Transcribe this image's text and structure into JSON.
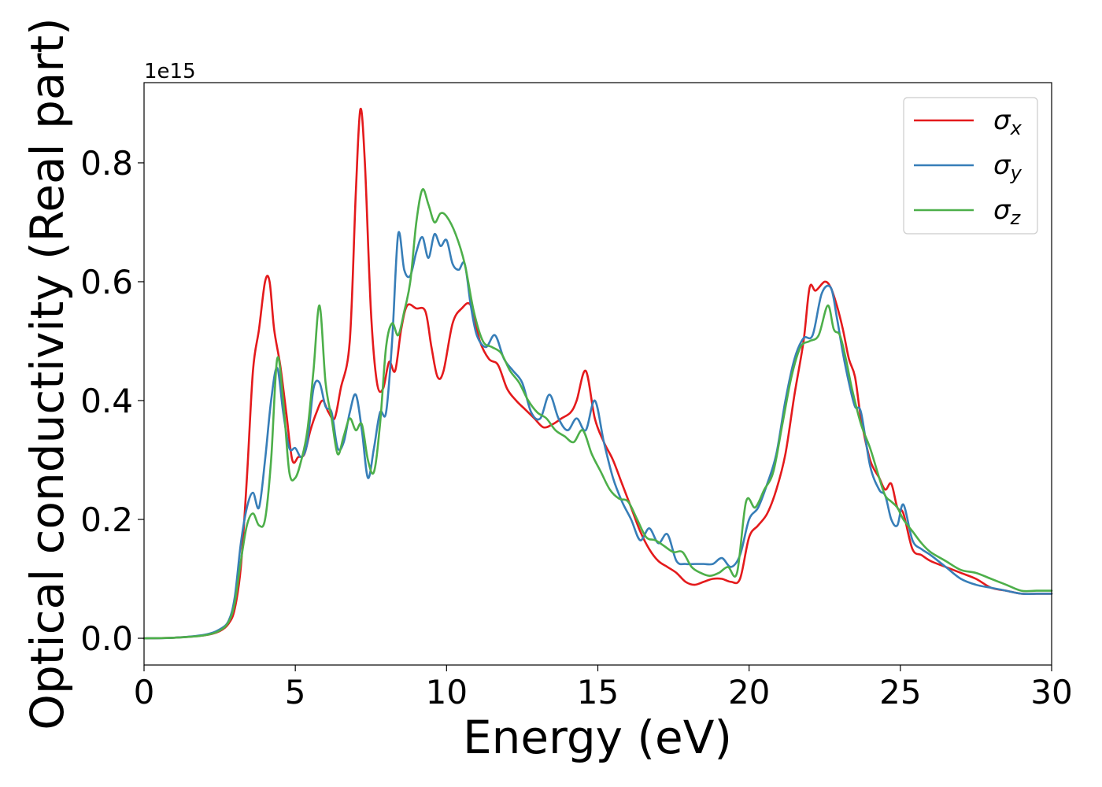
{
  "chart_data": {
    "type": "line",
    "title": "",
    "xlabel": "Energy (eV)",
    "ylabel": "Optical conductivity (Real part)",
    "y_offset_label": "1e15",
    "xlim": [
      0,
      30
    ],
    "ylim": [
      -0.045,
      0.935
    ],
    "x_ticks": [
      0,
      5,
      10,
      15,
      20,
      25,
      30
    ],
    "x_tick_labels": [
      "0",
      "5",
      "10",
      "15",
      "20",
      "25",
      "30"
    ],
    "y_ticks": [
      0.0,
      0.2,
      0.4,
      0.6,
      0.8
    ],
    "y_tick_labels": [
      "0.0",
      "0.2",
      "0.4",
      "0.6",
      "0.8"
    ],
    "grid": false,
    "legend": "top-right",
    "series": [
      {
        "name": "σx",
        "symbol": "σ",
        "sub": "x",
        "color": "#e41a1c",
        "x": [
          0,
          1,
          2,
          2.5,
          2.8,
          3.0,
          3.2,
          3.4,
          3.6,
          3.8,
          4.0,
          4.15,
          4.3,
          4.5,
          4.7,
          4.9,
          5.1,
          5.3,
          5.5,
          5.7,
          5.9,
          6.1,
          6.3,
          6.5,
          6.8,
          7.0,
          7.15,
          7.3,
          7.5,
          7.7,
          7.9,
          8.1,
          8.3,
          8.5,
          8.7,
          9.0,
          9.3,
          9.5,
          9.7,
          9.9,
          10.2,
          10.5,
          10.8,
          11.1,
          11.4,
          11.7,
          12.0,
          12.3,
          12.6,
          12.9,
          13.2,
          13.5,
          13.8,
          14.1,
          14.3,
          14.6,
          14.9,
          15.2,
          15.5,
          15.8,
          16.1,
          16.4,
          16.7,
          17.0,
          17.3,
          17.6,
          17.9,
          18.2,
          18.5,
          18.8,
          19.1,
          19.4,
          19.7,
          20.0,
          20.3,
          20.6,
          20.9,
          21.2,
          21.5,
          21.8,
          22.0,
          22.2,
          22.5,
          22.7,
          22.9,
          23.1,
          23.3,
          23.5,
          23.7,
          24.0,
          24.3,
          24.5,
          24.7,
          24.9,
          25.1,
          25.4,
          25.7,
          26.0,
          26.5,
          27.0,
          27.5,
          28.0,
          28.5,
          29.0,
          29.5,
          30.0
        ],
        "y": [
          0,
          0.001,
          0.005,
          0.012,
          0.025,
          0.05,
          0.12,
          0.27,
          0.45,
          0.52,
          0.6,
          0.6,
          0.52,
          0.46,
          0.38,
          0.3,
          0.305,
          0.31,
          0.35,
          0.38,
          0.4,
          0.38,
          0.37,
          0.42,
          0.5,
          0.75,
          0.89,
          0.8,
          0.55,
          0.43,
          0.42,
          0.465,
          0.45,
          0.52,
          0.56,
          0.555,
          0.55,
          0.49,
          0.44,
          0.45,
          0.53,
          0.555,
          0.56,
          0.5,
          0.47,
          0.46,
          0.42,
          0.4,
          0.385,
          0.37,
          0.355,
          0.36,
          0.37,
          0.38,
          0.4,
          0.45,
          0.37,
          0.33,
          0.3,
          0.26,
          0.22,
          0.18,
          0.15,
          0.13,
          0.12,
          0.11,
          0.095,
          0.09,
          0.095,
          0.1,
          0.1,
          0.095,
          0.1,
          0.17,
          0.19,
          0.21,
          0.25,
          0.31,
          0.41,
          0.5,
          0.59,
          0.585,
          0.6,
          0.59,
          0.56,
          0.52,
          0.47,
          0.44,
          0.37,
          0.3,
          0.27,
          0.25,
          0.26,
          0.22,
          0.21,
          0.15,
          0.14,
          0.13,
          0.12,
          0.11,
          0.1,
          0.085,
          0.08,
          0.075,
          0.075,
          0.075
        ]
      },
      {
        "name": "σy",
        "symbol": "σ",
        "sub": "y",
        "color": "#377eb8",
        "x": [
          0,
          1,
          2,
          2.5,
          2.8,
          3.0,
          3.2,
          3.4,
          3.6,
          3.8,
          4.0,
          4.2,
          4.4,
          4.6,
          4.8,
          5.0,
          5.2,
          5.4,
          5.6,
          5.8,
          6.0,
          6.2,
          6.4,
          6.6,
          6.8,
          7.0,
          7.2,
          7.4,
          7.6,
          7.8,
          8.0,
          8.2,
          8.4,
          8.6,
          8.8,
          9.0,
          9.2,
          9.4,
          9.6,
          9.8,
          10.0,
          10.2,
          10.4,
          10.6,
          10.8,
          11.0,
          11.3,
          11.6,
          11.9,
          12.2,
          12.5,
          12.8,
          13.1,
          13.4,
          13.7,
          14.0,
          14.3,
          14.6,
          14.9,
          15.2,
          15.5,
          15.8,
          16.1,
          16.4,
          16.7,
          17.0,
          17.3,
          17.6,
          17.9,
          18.2,
          18.5,
          18.8,
          19.1,
          19.4,
          19.7,
          20.0,
          20.3,
          20.6,
          20.9,
          21.2,
          21.5,
          21.8,
          22.1,
          22.4,
          22.7,
          22.9,
          23.1,
          23.3,
          23.5,
          23.7,
          24.0,
          24.3,
          24.5,
          24.7,
          24.9,
          25.1,
          25.4,
          25.7,
          26.0,
          26.5,
          27.0,
          27.5,
          28.0,
          28.5,
          29.0,
          29.5,
          30.0
        ],
        "y": [
          0,
          0.001,
          0.006,
          0.015,
          0.03,
          0.07,
          0.16,
          0.22,
          0.245,
          0.22,
          0.3,
          0.4,
          0.455,
          0.38,
          0.32,
          0.32,
          0.305,
          0.33,
          0.42,
          0.43,
          0.39,
          0.38,
          0.32,
          0.33,
          0.38,
          0.41,
          0.35,
          0.27,
          0.32,
          0.38,
          0.38,
          0.5,
          0.68,
          0.62,
          0.61,
          0.65,
          0.675,
          0.64,
          0.68,
          0.66,
          0.67,
          0.63,
          0.62,
          0.63,
          0.56,
          0.51,
          0.49,
          0.51,
          0.47,
          0.45,
          0.43,
          0.38,
          0.37,
          0.41,
          0.37,
          0.35,
          0.37,
          0.35,
          0.4,
          0.33,
          0.27,
          0.23,
          0.2,
          0.165,
          0.185,
          0.16,
          0.175,
          0.13,
          0.125,
          0.125,
          0.125,
          0.125,
          0.135,
          0.12,
          0.14,
          0.2,
          0.22,
          0.26,
          0.31,
          0.4,
          0.47,
          0.505,
          0.51,
          0.58,
          0.59,
          0.54,
          0.48,
          0.43,
          0.39,
          0.38,
          0.29,
          0.25,
          0.24,
          0.2,
          0.19,
          0.225,
          0.165,
          0.15,
          0.14,
          0.12,
          0.1,
          0.09,
          0.085,
          0.08,
          0.075,
          0.075,
          0.075
        ]
      },
      {
        "name": "σz",
        "symbol": "σ",
        "sub": "z",
        "color": "#4daf4a",
        "x": [
          0,
          1,
          2,
          2.5,
          2.8,
          3.0,
          3.2,
          3.4,
          3.6,
          3.8,
          4.0,
          4.2,
          4.4,
          4.6,
          4.8,
          5.0,
          5.2,
          5.4,
          5.6,
          5.8,
          6.0,
          6.2,
          6.4,
          6.6,
          6.8,
          7.0,
          7.2,
          7.4,
          7.6,
          7.8,
          8.0,
          8.2,
          8.4,
          8.6,
          8.8,
          9.0,
          9.2,
          9.4,
          9.6,
          9.8,
          10.0,
          10.3,
          10.6,
          10.9,
          11.2,
          11.5,
          11.8,
          12.1,
          12.4,
          12.7,
          13.0,
          13.3,
          13.6,
          13.9,
          14.2,
          14.5,
          14.8,
          15.1,
          15.4,
          15.7,
          16.0,
          16.3,
          16.6,
          16.9,
          17.2,
          17.5,
          17.8,
          18.1,
          18.4,
          18.7,
          19.0,
          19.3,
          19.6,
          19.9,
          20.2,
          20.5,
          20.8,
          21.1,
          21.4,
          21.7,
          22.0,
          22.3,
          22.6,
          22.8,
          23.0,
          23.2,
          23.4,
          23.7,
          24.0,
          24.3,
          24.5,
          24.7,
          24.9,
          25.1,
          25.4,
          25.7,
          26.0,
          26.5,
          27.0,
          27.5,
          28.0,
          28.5,
          29.0,
          29.5,
          30.0
        ],
        "y": [
          0,
          0.001,
          0.005,
          0.013,
          0.028,
          0.06,
          0.13,
          0.19,
          0.21,
          0.19,
          0.2,
          0.3,
          0.47,
          0.4,
          0.28,
          0.27,
          0.3,
          0.35,
          0.45,
          0.56,
          0.43,
          0.37,
          0.31,
          0.34,
          0.37,
          0.35,
          0.36,
          0.3,
          0.28,
          0.36,
          0.49,
          0.53,
          0.51,
          0.55,
          0.6,
          0.7,
          0.755,
          0.73,
          0.7,
          0.715,
          0.71,
          0.68,
          0.63,
          0.55,
          0.5,
          0.49,
          0.48,
          0.45,
          0.43,
          0.4,
          0.38,
          0.37,
          0.35,
          0.34,
          0.33,
          0.35,
          0.31,
          0.28,
          0.25,
          0.235,
          0.23,
          0.2,
          0.17,
          0.165,
          0.155,
          0.145,
          0.145,
          0.12,
          0.11,
          0.105,
          0.11,
          0.12,
          0.11,
          0.23,
          0.22,
          0.25,
          0.28,
          0.36,
          0.44,
          0.49,
          0.5,
          0.51,
          0.56,
          0.52,
          0.51,
          0.47,
          0.42,
          0.36,
          0.32,
          0.27,
          0.24,
          0.23,
          0.22,
          0.2,
          0.18,
          0.16,
          0.145,
          0.13,
          0.115,
          0.11,
          0.1,
          0.09,
          0.08,
          0.08,
          0.08
        ]
      }
    ]
  }
}
